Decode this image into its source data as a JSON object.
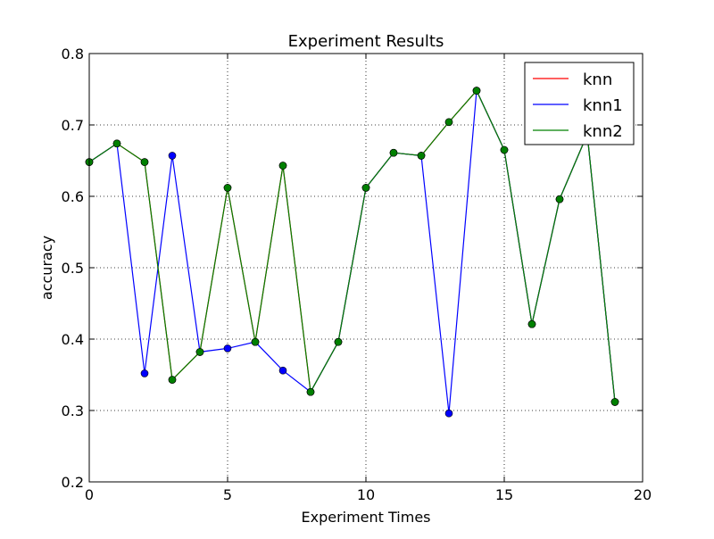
{
  "chart_data": {
    "type": "line",
    "title": "Experiment Results",
    "xlabel": "Experiment Times",
    "ylabel": "accuracy",
    "xlim": [
      0,
      20
    ],
    "ylim": [
      0.2,
      0.8
    ],
    "xticks": [
      0,
      5,
      10,
      15,
      20
    ],
    "yticks": [
      0.2,
      0.3,
      0.4,
      0.5,
      0.6,
      0.7,
      0.8
    ],
    "xtick_labels": [
      "0",
      "5",
      "10",
      "15",
      "20"
    ],
    "ytick_labels": [
      "0.2",
      "0.3",
      "0.4",
      "0.5",
      "0.6",
      "0.7",
      "0.8"
    ],
    "grid": true,
    "grid_style": "dotted",
    "legend_position": "top-right",
    "x": [
      0,
      1,
      2,
      3,
      4,
      5,
      6,
      7,
      8,
      9,
      10,
      11,
      12,
      13,
      14,
      15,
      16,
      17,
      18,
      19
    ],
    "series": [
      {
        "name": "knn",
        "color": "#ff0000",
        "values": [
          0.648,
          0.674,
          0.648,
          0.343,
          0.382,
          0.612,
          0.396,
          0.643,
          0.326,
          0.396,
          0.612,
          0.661,
          0.657,
          0.704,
          0.748,
          0.665,
          0.421,
          0.596,
          0.687,
          0.312
        ]
      },
      {
        "name": "knn1",
        "color": "#0000ff",
        "values": [
          0.648,
          0.674,
          0.352,
          0.657,
          0.382,
          0.387,
          0.396,
          0.356,
          0.326,
          0.396,
          0.612,
          0.661,
          0.657,
          0.296,
          0.748,
          0.665,
          0.421,
          0.596,
          0.687,
          0.312
        ]
      },
      {
        "name": "knn2",
        "color": "#008000",
        "values": [
          0.648,
          0.674,
          0.648,
          0.343,
          0.382,
          0.612,
          0.396,
          0.643,
          0.326,
          0.396,
          0.612,
          0.661,
          0.657,
          0.704,
          0.748,
          0.665,
          0.421,
          0.596,
          0.687,
          0.312
        ]
      }
    ]
  }
}
